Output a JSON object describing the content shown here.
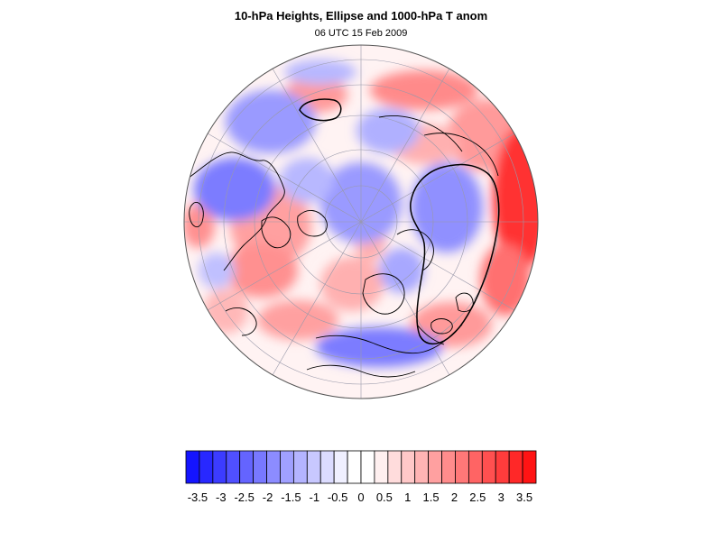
{
  "title": "10-hPa Heights, Ellipse and 1000-hPa T anom",
  "subtitle": "06 UTC 15 Feb 2009",
  "map": {
    "projection": "orthographic north-polar",
    "field": "1000-hPa T anom",
    "contour": "10-hPa Heights, Ellipse"
  },
  "colorbar": {
    "tick_labels": [
      "-3.5",
      "-3",
      "-2.5",
      "-2",
      "-1.5",
      "-1",
      "-0.5",
      "0",
      "0.5",
      "1",
      "1.5",
      "2",
      "2.5",
      "3",
      "3.5"
    ],
    "min": -3.75,
    "max": 3.75,
    "colors": [
      "#1414ff",
      "#2828ff",
      "#3c3cff",
      "#5050ff",
      "#6464ff",
      "#7878ff",
      "#8c8cff",
      "#a0a0ff",
      "#b4b4ff",
      "#c8c8ff",
      "#dcdcff",
      "#f0f0ff",
      "#ffffff",
      "#ffffff",
      "#fff0f0",
      "#ffdcdc",
      "#ffc8c8",
      "#ffb4b4",
      "#ffa0a0",
      "#ff8c8c",
      "#ff7878",
      "#ff6464",
      "#ff5050",
      "#ff3c3c",
      "#ff2828",
      "#ff1414"
    ]
  },
  "colors": {
    "cold": "#5a5aff",
    "warm": "#ff5a5a",
    "neutral": "#fff5f5",
    "coast": "#000000",
    "grid": "#9999aa"
  }
}
